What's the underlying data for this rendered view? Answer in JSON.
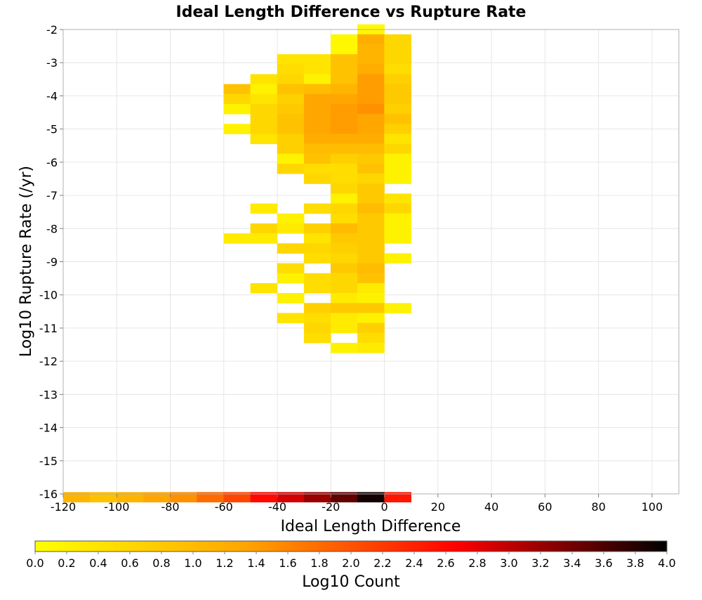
{
  "chart_data": {
    "type": "heatmap",
    "title": "Ideal Length Difference vs Rupture Rate",
    "xlabel": "Ideal Length Difference",
    "ylabel": "Log10 Rupture Rate (/yr)",
    "xlim": [
      -120,
      110
    ],
    "ylim": [
      -16,
      -2
    ],
    "x_ticks": [
      "-120",
      "-100",
      "-80",
      "-60",
      "-40",
      "-20",
      "0",
      "20",
      "40",
      "60",
      "80",
      "100"
    ],
    "y_ticks": [
      "-2",
      "-3",
      "-4",
      "-5",
      "-6",
      "-7",
      "-8",
      "-9",
      "-10",
      "-11",
      "-12",
      "-13",
      "-14",
      "-15",
      "-16"
    ],
    "grid": true,
    "x_bin_width": 10,
    "y_bin_height": 0.3,
    "colorbar": {
      "label": "Log10 Count",
      "min": 0.0,
      "max": 4.0,
      "ticks": [
        "0.0",
        "0.2",
        "0.4",
        "0.6",
        "0.8",
        "1.0",
        "1.2",
        "1.4",
        "1.6",
        "1.8",
        "2.0",
        "2.2",
        "2.4",
        "2.6",
        "2.8",
        "3.0",
        "3.2",
        "3.4",
        "3.6",
        "3.8",
        "4.0"
      ],
      "colors": [
        "#ffff00",
        "#ffa500",
        "#ff0000",
        "#000000"
      ]
    },
    "cells": [
      [
        -10,
        -2.0,
        0.1
      ],
      [
        -20,
        -2.3,
        0.1
      ],
      [
        -10,
        -2.3,
        1.2
      ],
      [
        0,
        -2.3,
        0.6
      ],
      [
        -20,
        -2.6,
        0.1
      ],
      [
        -10,
        -2.6,
        1.1
      ],
      [
        0,
        -2.6,
        0.6
      ],
      [
        -40,
        -2.9,
        0.4
      ],
      [
        -30,
        -2.9,
        0.4
      ],
      [
        -20,
        -2.9,
        0.9
      ],
      [
        -10,
        -2.9,
        1.1
      ],
      [
        0,
        -2.9,
        0.6
      ],
      [
        -40,
        -3.2,
        0.5
      ],
      [
        -30,
        -3.2,
        0.4
      ],
      [
        -20,
        -3.2,
        0.9
      ],
      [
        -10,
        -3.2,
        1.2
      ],
      [
        0,
        -3.2,
        0.5
      ],
      [
        -50,
        -3.5,
        0.4
      ],
      [
        -40,
        -3.5,
        0.6
      ],
      [
        -30,
        -3.5,
        0.2
      ],
      [
        -20,
        -3.5,
        0.9
      ],
      [
        -10,
        -3.5,
        1.4
      ],
      [
        0,
        -3.5,
        0.7
      ],
      [
        -60,
        -3.8,
        0.9
      ],
      [
        -50,
        -3.8,
        0.2
      ],
      [
        -40,
        -3.8,
        0.9
      ],
      [
        -30,
        -3.8,
        1.0
      ],
      [
        -20,
        -3.8,
        1.1
      ],
      [
        -10,
        -3.8,
        1.4
      ],
      [
        0,
        -3.8,
        0.8
      ],
      [
        -60,
        -4.1,
        0.6
      ],
      [
        -50,
        -4.1,
        0.4
      ],
      [
        -40,
        -4.1,
        0.7
      ],
      [
        -30,
        -4.1,
        1.3
      ],
      [
        -20,
        -4.1,
        1.3
      ],
      [
        -10,
        -4.1,
        1.4
      ],
      [
        0,
        -4.1,
        0.8
      ],
      [
        -60,
        -4.4,
        0.2
      ],
      [
        -50,
        -4.4,
        0.6
      ],
      [
        -40,
        -4.4,
        0.8
      ],
      [
        -30,
        -4.4,
        1.3
      ],
      [
        -20,
        -4.4,
        1.4
      ],
      [
        -10,
        -4.4,
        1.5
      ],
      [
        0,
        -4.4,
        0.7
      ],
      [
        -50,
        -4.7,
        0.6
      ],
      [
        -40,
        -4.7,
        0.9
      ],
      [
        -30,
        -4.7,
        1.3
      ],
      [
        -20,
        -4.7,
        1.4
      ],
      [
        -10,
        -4.7,
        1.3
      ],
      [
        0,
        -4.7,
        0.9
      ],
      [
        -60,
        -5.0,
        0.2
      ],
      [
        -50,
        -5.0,
        0.6
      ],
      [
        -40,
        -5.0,
        0.9
      ],
      [
        -30,
        -5.0,
        1.3
      ],
      [
        -20,
        -5.0,
        1.4
      ],
      [
        -10,
        -5.0,
        1.3
      ],
      [
        0,
        -5.0,
        0.7
      ],
      [
        -50,
        -5.3,
        0.4
      ],
      [
        -40,
        -5.3,
        0.7
      ],
      [
        -30,
        -5.3,
        1.2
      ],
      [
        -20,
        -5.3,
        1.2
      ],
      [
        -10,
        -5.3,
        1.2
      ],
      [
        0,
        -5.3,
        0.4
      ],
      [
        -40,
        -5.6,
        0.7
      ],
      [
        -30,
        -5.6,
        1.0
      ],
      [
        -20,
        -5.6,
        1.0
      ],
      [
        -10,
        -5.6,
        1.0
      ],
      [
        0,
        -5.6,
        0.6
      ],
      [
        -40,
        -5.9,
        0.2
      ],
      [
        -30,
        -5.9,
        0.9
      ],
      [
        -20,
        -5.9,
        0.7
      ],
      [
        -10,
        -5.9,
        0.8
      ],
      [
        0,
        -5.9,
        0.2
      ],
      [
        -40,
        -6.2,
        0.6
      ],
      [
        -30,
        -6.2,
        0.5
      ],
      [
        -20,
        -6.2,
        0.5
      ],
      [
        -10,
        -6.2,
        0.9
      ],
      [
        0,
        -6.2,
        0.2
      ],
      [
        -30,
        -6.5,
        0.6
      ],
      [
        -20,
        -6.5,
        0.5
      ],
      [
        -10,
        -6.5,
        0.6
      ],
      [
        0,
        -6.5,
        0.2
      ],
      [
        -20,
        -6.8,
        0.6
      ],
      [
        -10,
        -6.8,
        0.8
      ],
      [
        -20,
        -7.1,
        0.2
      ],
      [
        -10,
        -7.1,
        0.8
      ],
      [
        0,
        -7.1,
        0.4
      ],
      [
        -50,
        -7.4,
        0.3
      ],
      [
        -30,
        -7.4,
        0.5
      ],
      [
        -20,
        -7.4,
        0.6
      ],
      [
        -10,
        -7.4,
        1.0
      ],
      [
        0,
        -7.4,
        0.6
      ],
      [
        -40,
        -7.7,
        0.2
      ],
      [
        -20,
        -7.7,
        0.5
      ],
      [
        -10,
        -7.7,
        0.8
      ],
      [
        0,
        -7.7,
        0.2
      ],
      [
        -50,
        -8.0,
        0.6
      ],
      [
        -40,
        -8.0,
        0.3
      ],
      [
        -30,
        -8.0,
        0.7
      ],
      [
        -20,
        -8.0,
        1.0
      ],
      [
        -10,
        -8.0,
        0.8
      ],
      [
        0,
        -8.0,
        0.2
      ],
      [
        -60,
        -8.3,
        0.3
      ],
      [
        -50,
        -8.3,
        0.3
      ],
      [
        -30,
        -8.3,
        0.4
      ],
      [
        -20,
        -8.3,
        0.8
      ],
      [
        -10,
        -8.3,
        0.8
      ],
      [
        0,
        -8.3,
        0.2
      ],
      [
        -40,
        -8.6,
        0.6
      ],
      [
        -30,
        -8.6,
        0.6
      ],
      [
        -20,
        -8.6,
        0.7
      ],
      [
        -10,
        -8.6,
        0.8
      ],
      [
        -30,
        -8.9,
        0.5
      ],
      [
        -20,
        -8.9,
        0.6
      ],
      [
        -10,
        -8.9,
        0.8
      ],
      [
        0,
        -8.9,
        0.2
      ],
      [
        -40,
        -9.2,
        0.5
      ],
      [
        -20,
        -9.2,
        0.8
      ],
      [
        -10,
        -9.2,
        1.0
      ],
      [
        -40,
        -9.5,
        0.2
      ],
      [
        -30,
        -9.5,
        0.5
      ],
      [
        -20,
        -9.5,
        0.6
      ],
      [
        -10,
        -9.5,
        0.9
      ],
      [
        -50,
        -9.8,
        0.4
      ],
      [
        -30,
        -9.8,
        0.5
      ],
      [
        -20,
        -9.8,
        0.6
      ],
      [
        -10,
        -9.8,
        0.3
      ],
      [
        -40,
        -10.1,
        0.2
      ],
      [
        -20,
        -10.1,
        0.3
      ],
      [
        -10,
        -10.1,
        0.2
      ],
      [
        -30,
        -10.4,
        0.7
      ],
      [
        -20,
        -10.4,
        0.8
      ],
      [
        -10,
        -10.4,
        0.8
      ],
      [
        0,
        -10.4,
        0.2
      ],
      [
        -40,
        -10.7,
        0.4
      ],
      [
        -30,
        -10.7,
        0.5
      ],
      [
        -20,
        -10.7,
        0.3
      ],
      [
        -10,
        -10.7,
        0.2
      ],
      [
        -30,
        -11.0,
        0.6
      ],
      [
        -20,
        -11.0,
        0.3
      ],
      [
        -10,
        -11.0,
        0.7
      ],
      [
        -30,
        -11.3,
        0.5
      ],
      [
        -10,
        -11.3,
        0.5
      ],
      [
        -20,
        -11.6,
        0.2
      ],
      [
        -10,
        -11.6,
        0.3
      ],
      [
        -120,
        -16.1,
        1.1
      ],
      [
        -110,
        -16.1,
        0.9
      ],
      [
        -100,
        -16.1,
        1.1
      ],
      [
        -90,
        -16.1,
        1.3
      ],
      [
        -80,
        -16.1,
        1.5
      ],
      [
        -70,
        -16.1,
        1.8
      ],
      [
        -60,
        -16.1,
        2.1
      ],
      [
        -50,
        -16.1,
        2.6
      ],
      [
        -40,
        -16.1,
        2.9
      ],
      [
        -30,
        -16.1,
        3.2
      ],
      [
        -20,
        -16.1,
        3.5
      ],
      [
        -10,
        -16.1,
        3.9
      ],
      [
        0,
        -16.1,
        2.5
      ]
    ]
  }
}
